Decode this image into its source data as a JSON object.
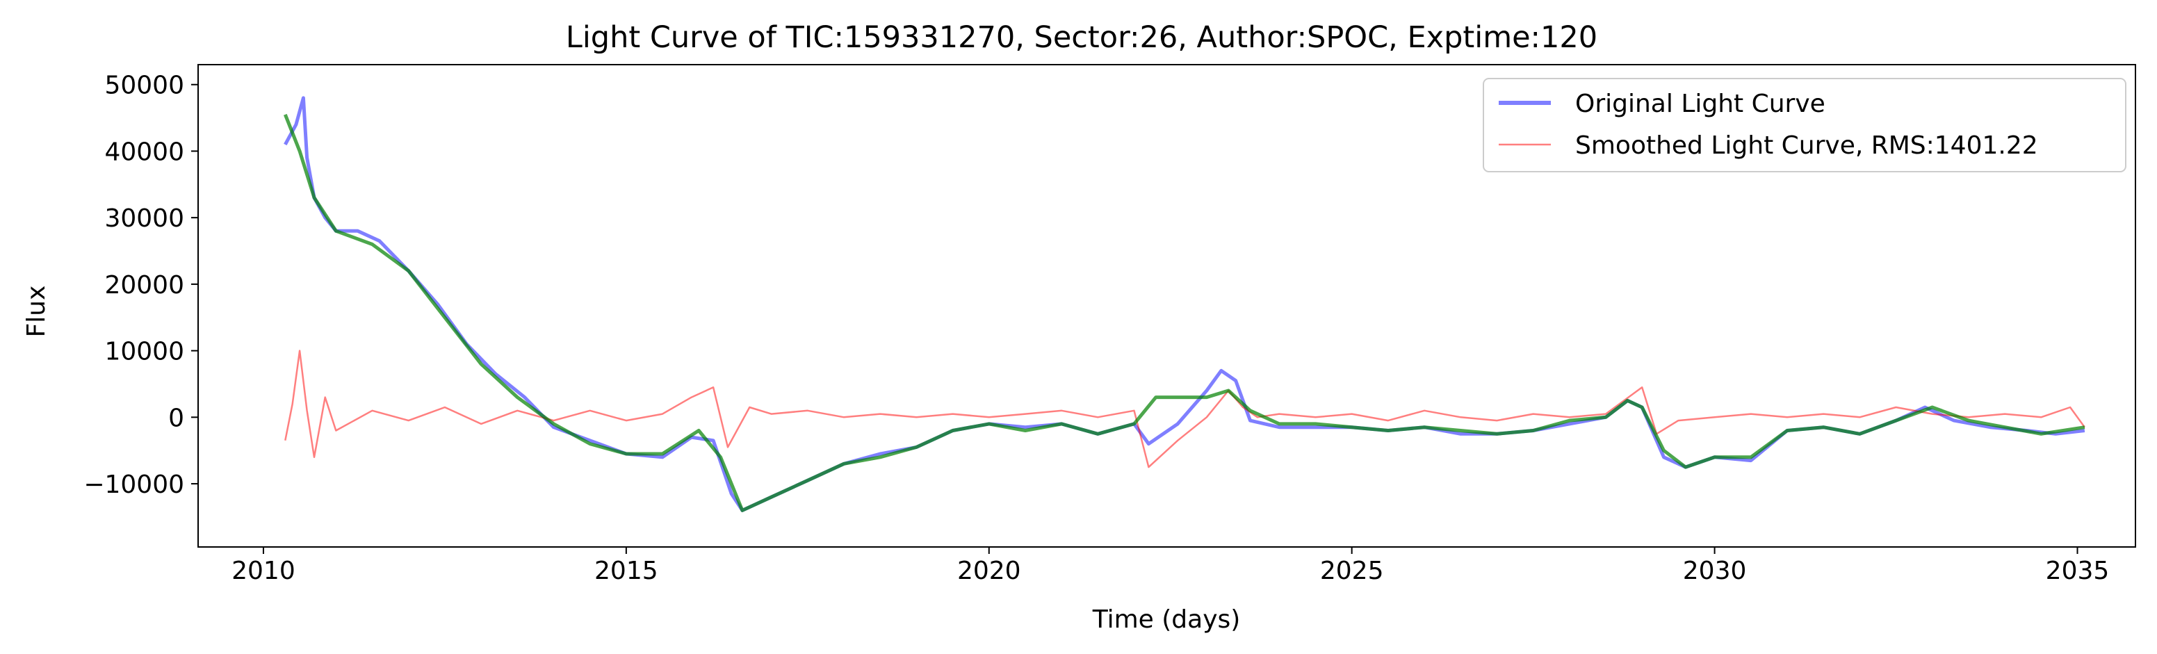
{
  "chart_data": {
    "type": "line",
    "title": "Light Curve of TIC:159331270, Sector:26, Author:SPOC, Exptime:120",
    "xlabel": "Time (days)",
    "ylabel": "Flux",
    "xlim": [
      2009.1,
      2035.8
    ],
    "ylim": [
      -19500,
      53000
    ],
    "x_ticks": [
      2010,
      2015,
      2020,
      2025,
      2030,
      2035
    ],
    "y_ticks": [
      -10000,
      0,
      10000,
      20000,
      30000,
      40000,
      50000
    ],
    "y_tick_labels": [
      "−10000",
      "0",
      "10000",
      "20000",
      "30000",
      "40000",
      "50000"
    ],
    "grid": false,
    "legend_position": "top-right",
    "series": [
      {
        "name": "Original Light Curve",
        "color": "#0000ff",
        "opacity": 0.5,
        "points": [
          [
            2010.3,
            41000
          ],
          [
            2010.45,
            44000
          ],
          [
            2010.55,
            48000
          ],
          [
            2010.6,
            39000
          ],
          [
            2010.7,
            33000
          ],
          [
            2010.85,
            30000
          ],
          [
            2011.0,
            28000
          ],
          [
            2011.3,
            28000
          ],
          [
            2011.6,
            26500
          ],
          [
            2012.0,
            22000
          ],
          [
            2012.4,
            17000
          ],
          [
            2012.8,
            11000
          ],
          [
            2013.2,
            6500
          ],
          [
            2013.6,
            3000
          ],
          [
            2014.0,
            -1500
          ],
          [
            2014.5,
            -3500
          ],
          [
            2015.0,
            -5500
          ],
          [
            2015.5,
            -6000
          ],
          [
            2015.9,
            -3000
          ],
          [
            2016.2,
            -3500
          ],
          [
            2016.45,
            -11500
          ],
          [
            2016.6,
            -14000
          ],
          [
            2017.0,
            -12000
          ],
          [
            2017.5,
            -9500
          ],
          [
            2018.0,
            -7000
          ],
          [
            2018.5,
            -5500
          ],
          [
            2019.0,
            -4500
          ],
          [
            2019.5,
            -2000
          ],
          [
            2020.0,
            -1000
          ],
          [
            2020.5,
            -1500
          ],
          [
            2021.0,
            -1000
          ],
          [
            2021.5,
            -2500
          ],
          [
            2022.0,
            -1000
          ],
          [
            2022.2,
            -4000
          ],
          [
            2022.6,
            -1000
          ],
          [
            2023.0,
            4000
          ],
          [
            2023.2,
            7000
          ],
          [
            2023.4,
            5500
          ],
          [
            2023.6,
            -500
          ],
          [
            2024.0,
            -1500
          ],
          [
            2024.5,
            -1500
          ],
          [
            2025.0,
            -1500
          ],
          [
            2025.5,
            -2000
          ],
          [
            2026.0,
            -1500
          ],
          [
            2026.5,
            -2500
          ],
          [
            2027.0,
            -2500
          ],
          [
            2027.5,
            -2000
          ],
          [
            2028.0,
            -1000
          ],
          [
            2028.5,
            0
          ],
          [
            2028.8,
            2500
          ],
          [
            2029.0,
            1500
          ],
          [
            2029.3,
            -6000
          ],
          [
            2029.6,
            -7500
          ],
          [
            2030.0,
            -6000
          ],
          [
            2030.5,
            -6500
          ],
          [
            2031.0,
            -2000
          ],
          [
            2031.5,
            -1500
          ],
          [
            2032.0,
            -2500
          ],
          [
            2032.5,
            -500
          ],
          [
            2032.9,
            1500
          ],
          [
            2033.3,
            -500
          ],
          [
            2033.8,
            -1500
          ],
          [
            2034.3,
            -2000
          ],
          [
            2034.7,
            -2500
          ],
          [
            2035.1,
            -2000
          ]
        ]
      },
      {
        "name": "Smoothed Light Curve, RMS:1401.22",
        "color": "#ff0000",
        "opacity": 0.5,
        "points": [
          [
            2010.3,
            -3500
          ],
          [
            2010.4,
            2000
          ],
          [
            2010.5,
            10000
          ],
          [
            2010.6,
            1000
          ],
          [
            2010.7,
            -6000
          ],
          [
            2010.85,
            3000
          ],
          [
            2011.0,
            -2000
          ],
          [
            2011.5,
            1000
          ],
          [
            2012.0,
            -500
          ],
          [
            2012.5,
            1500
          ],
          [
            2013.0,
            -1000
          ],
          [
            2013.5,
            1000
          ],
          [
            2014.0,
            -500
          ],
          [
            2014.5,
            1000
          ],
          [
            2015.0,
            -500
          ],
          [
            2015.5,
            500
          ],
          [
            2015.9,
            3000
          ],
          [
            2016.2,
            4500
          ],
          [
            2016.4,
            -4500
          ],
          [
            2016.7,
            1500
          ],
          [
            2017.0,
            500
          ],
          [
            2017.5,
            1000
          ],
          [
            2018.0,
            0
          ],
          [
            2018.5,
            500
          ],
          [
            2019.0,
            0
          ],
          [
            2019.5,
            500
          ],
          [
            2020.0,
            0
          ],
          [
            2020.5,
            500
          ],
          [
            2021.0,
            1000
          ],
          [
            2021.5,
            0
          ],
          [
            2022.0,
            1000
          ],
          [
            2022.2,
            -7500
          ],
          [
            2022.6,
            -3500
          ],
          [
            2023.0,
            0
          ],
          [
            2023.3,
            4000
          ],
          [
            2023.5,
            1500
          ],
          [
            2023.7,
            0
          ],
          [
            2024.0,
            500
          ],
          [
            2024.5,
            0
          ],
          [
            2025.0,
            500
          ],
          [
            2025.5,
            -500
          ],
          [
            2026.0,
            1000
          ],
          [
            2026.5,
            0
          ],
          [
            2027.0,
            -500
          ],
          [
            2027.5,
            500
          ],
          [
            2028.0,
            0
          ],
          [
            2028.5,
            500
          ],
          [
            2029.0,
            4500
          ],
          [
            2029.2,
            -2500
          ],
          [
            2029.5,
            -500
          ],
          [
            2030.0,
            0
          ],
          [
            2030.5,
            500
          ],
          [
            2031.0,
            0
          ],
          [
            2031.5,
            500
          ],
          [
            2032.0,
            0
          ],
          [
            2032.5,
            1500
          ],
          [
            2033.0,
            500
          ],
          [
            2033.5,
            0
          ],
          [
            2034.0,
            500
          ],
          [
            2034.5,
            0
          ],
          [
            2034.9,
            1500
          ],
          [
            2035.1,
            -1500
          ]
        ]
      },
      {
        "color": "#008000",
        "opacity": 0.7,
        "points": [
          [
            2010.3,
            45500
          ],
          [
            2010.5,
            40000
          ],
          [
            2010.7,
            33000
          ],
          [
            2011.0,
            28000
          ],
          [
            2011.5,
            26000
          ],
          [
            2012.0,
            22000
          ],
          [
            2012.5,
            15000
          ],
          [
            2013.0,
            8000
          ],
          [
            2013.5,
            3000
          ],
          [
            2014.0,
            -1000
          ],
          [
            2014.5,
            -4000
          ],
          [
            2015.0,
            -5500
          ],
          [
            2015.5,
            -5500
          ],
          [
            2016.0,
            -2000
          ],
          [
            2016.3,
            -6000
          ],
          [
            2016.6,
            -14000
          ],
          [
            2017.0,
            -12000
          ],
          [
            2017.5,
            -9500
          ],
          [
            2018.0,
            -7000
          ],
          [
            2018.5,
            -6000
          ],
          [
            2019.0,
            -4500
          ],
          [
            2019.5,
            -2000
          ],
          [
            2020.0,
            -1000
          ],
          [
            2020.5,
            -2000
          ],
          [
            2021.0,
            -1000
          ],
          [
            2021.5,
            -2500
          ],
          [
            2022.0,
            -1000
          ],
          [
            2022.3,
            3000
          ],
          [
            2023.0,
            3000
          ],
          [
            2023.3,
            4000
          ],
          [
            2023.6,
            1000
          ],
          [
            2024.0,
            -1000
          ],
          [
            2024.5,
            -1000
          ],
          [
            2025.0,
            -1500
          ],
          [
            2025.5,
            -2000
          ],
          [
            2026.0,
            -1500
          ],
          [
            2026.5,
            -2000
          ],
          [
            2027.0,
            -2500
          ],
          [
            2027.5,
            -2000
          ],
          [
            2028.0,
            -500
          ],
          [
            2028.5,
            0
          ],
          [
            2028.8,
            2500
          ],
          [
            2029.0,
            1500
          ],
          [
            2029.3,
            -5000
          ],
          [
            2029.6,
            -7500
          ],
          [
            2030.0,
            -6000
          ],
          [
            2030.5,
            -6000
          ],
          [
            2031.0,
            -2000
          ],
          [
            2031.5,
            -1500
          ],
          [
            2032.0,
            -2500
          ],
          [
            2032.5,
            -500
          ],
          [
            2033.0,
            1500
          ],
          [
            2033.5,
            -500
          ],
          [
            2034.0,
            -1500
          ],
          [
            2034.5,
            -2500
          ],
          [
            2035.1,
            -1500
          ]
        ]
      }
    ]
  }
}
